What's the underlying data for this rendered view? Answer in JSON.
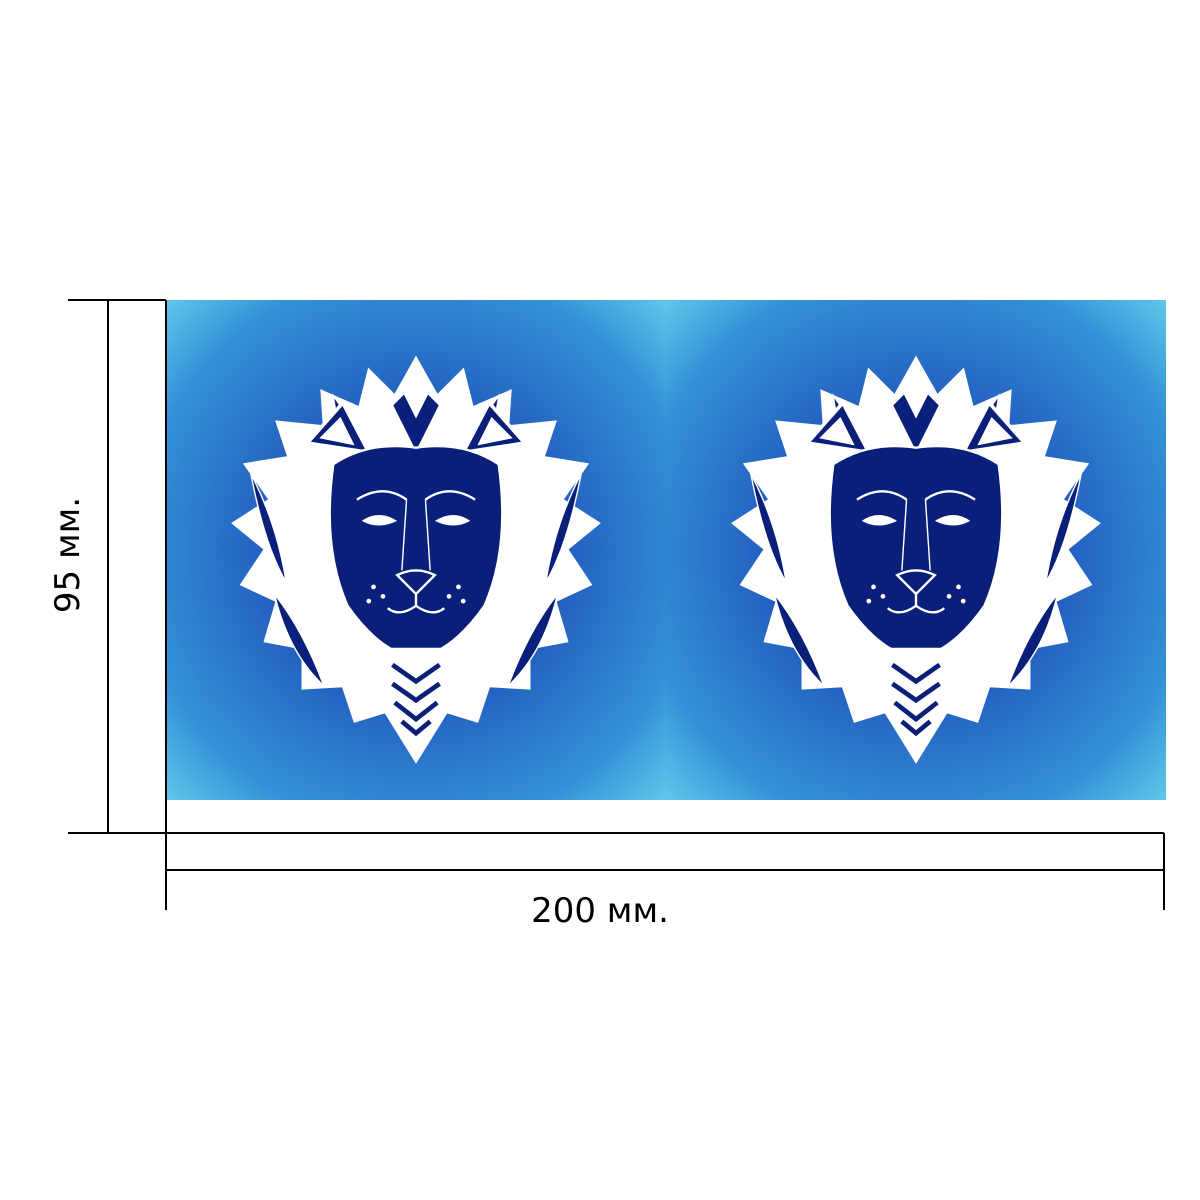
{
  "dimensions": {
    "height_label": "95 мм.",
    "width_label": "200 мм."
  },
  "print_area": {
    "panels": [
      {
        "subject": "lion-head-mandala"
      },
      {
        "subject": "lion-head-mandala"
      }
    ]
  },
  "colors": {
    "background_light": "#4fb6e3",
    "background_mid": "#1f6fc6",
    "background_deep": "#0f2a8a",
    "lion_fill": "#0a1f7a",
    "lion_line": "#ffffff",
    "dimension_line": "#000000"
  }
}
